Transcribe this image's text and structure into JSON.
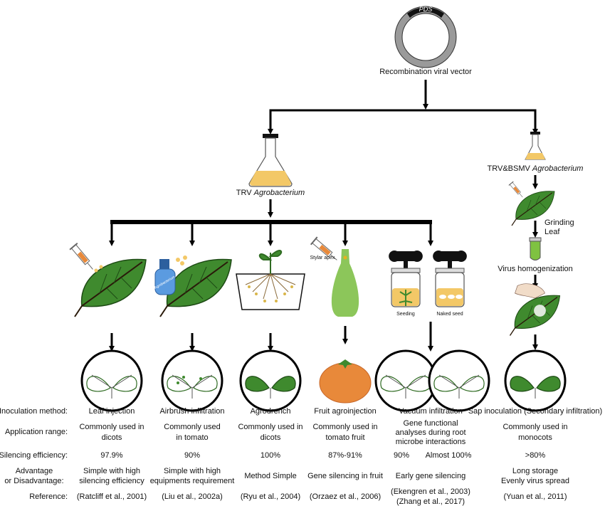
{
  "vector": {
    "gene_label": "PDS",
    "label": "Recombination viral vector"
  },
  "left_branch": {
    "label_prefix": "TRV",
    "label_italic": "Agrobacterium"
  },
  "right_branch": {
    "label_prefix": "TRV&BSMV",
    "label_italic": "Agrobacterium",
    "step_grinding": [
      "Grinding",
      "Leaf"
    ],
    "step_homogenization": "Virus homogenization"
  },
  "illustration_labels": {
    "airbrush_text": "Agrobacterium",
    "stylar_apex": "Stylar apex",
    "seeding": "Seeding",
    "naked_seed": "Naked seed"
  },
  "colors": {
    "leaf": "#3f8a2e",
    "agro": "#f3c867",
    "orange": "#e8893a",
    "tube": "#7fc241"
  },
  "table": {
    "row_labels": {
      "method": "Inoculation method:",
      "range": "Application range:",
      "efficiency": "Silencing efficiency:",
      "advantage": [
        "Advantage",
        "or Disadvantage:"
      ],
      "reference": "Reference:"
    },
    "columns": [
      {
        "method": "Leaf injection",
        "range": [
          "Commonly used in",
          "dicots"
        ],
        "efficiency": "97.9%",
        "advantage": [
          "Simple with high",
          "silencing efficiency"
        ],
        "reference": [
          "(Ratcliff et al., 2001)"
        ]
      },
      {
        "method": "Airbrush infiltration",
        "range": [
          "Commonly used",
          "in tomato"
        ],
        "efficiency": "90%",
        "advantage": [
          "Simple with high",
          "equipments requirement"
        ],
        "reference": [
          "(Liu et al., 2002a)"
        ]
      },
      {
        "method": "Agrodrench",
        "range": [
          "Commonly used in",
          "dicots"
        ],
        "efficiency": "100%",
        "advantage": [
          "Method Simple"
        ],
        "reference": [
          "(Ryu et al., 2004)"
        ]
      },
      {
        "method": "Fruit agroinjection",
        "range": [
          "Commonly used in",
          "tomato fruit"
        ],
        "efficiency": "87%-91%",
        "advantage": [
          "Gene silencing in fruit"
        ],
        "reference": [
          "(Orzaez et al., 2006)"
        ]
      },
      {
        "method": "Vacuum infiltration",
        "range": [
          "Gene functional",
          "analyses during root",
          "microbe interactions"
        ],
        "efficiency": [
          "90%",
          "Almost 100%"
        ],
        "advantage": [
          "Early gene silencing"
        ],
        "reference": [
          "(Ekengren et al., 2003)",
          "(Zhang et al., 2017)"
        ]
      },
      {
        "method": "Sap inoculation (Secondary infiltration)",
        "range": [
          "Commonly used in",
          "monocots"
        ],
        "efficiency": ">80%",
        "advantage": [
          "Long storage",
          "Evenly virus spread"
        ],
        "reference": [
          "(Yuan et al., 2011)"
        ]
      }
    ]
  }
}
